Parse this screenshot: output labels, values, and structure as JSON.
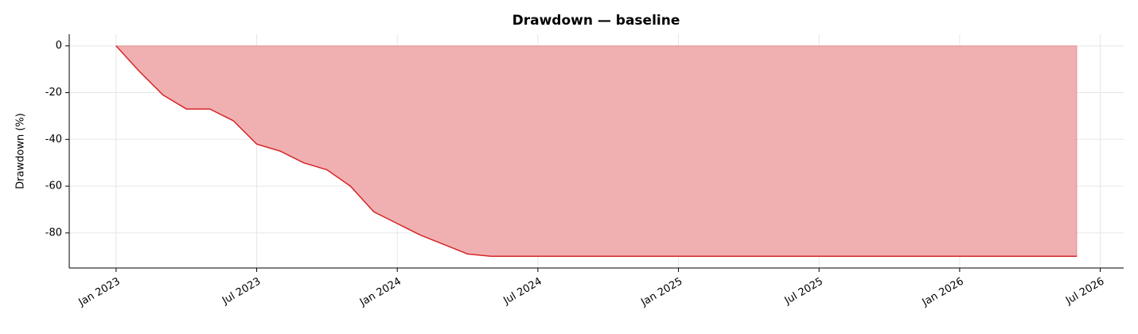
{
  "chart_data": {
    "type": "area",
    "title": "Drawdown — baseline",
    "y_label": "Drawdown (%)",
    "x": [
      "2023-01",
      "2023-02",
      "2023-03",
      "2023-04",
      "2023-05",
      "2023-06",
      "2023-07",
      "2023-08",
      "2023-09",
      "2023-10",
      "2023-11",
      "2023-12",
      "2024-01",
      "2024-02",
      "2024-03",
      "2024-04",
      "2024-05",
      "2024-06",
      "2024-07",
      "2024-08",
      "2024-09",
      "2024-10",
      "2024-11",
      "2024-12",
      "2025-01",
      "2025-02",
      "2025-03",
      "2025-04",
      "2025-05",
      "2025-06",
      "2025-07",
      "2025-08",
      "2025-09",
      "2025-10",
      "2025-11",
      "2025-12",
      "2026-01",
      "2026-02",
      "2026-03",
      "2026-04",
      "2026-05",
      "2026-06"
    ],
    "values": [
      0,
      -11,
      -21,
      -27,
      -27,
      -32,
      -42,
      -45,
      -50,
      -53,
      -60,
      -71,
      -76,
      -81,
      -85,
      -89,
      -90,
      -90,
      -90,
      -90,
      -90,
      -90,
      -90,
      -90,
      -90,
      -90,
      -90,
      -90,
      -90,
      -90,
      -90,
      -90,
      -90,
      -90,
      -90,
      -90,
      -90,
      -90,
      -90,
      -90,
      -90,
      -90
    ],
    "color": "#d62728",
    "fill_color": "#f0b0b2",
    "xlim": [
      "2022-11",
      "2026-08"
    ],
    "xticks": [
      {
        "value": "2023-01",
        "label": "Jan 2023"
      },
      {
        "value": "2023-07",
        "label": "Jul 2023"
      },
      {
        "value": "2024-01",
        "label": "Jan 2024"
      },
      {
        "value": "2024-07",
        "label": "Jul 2024"
      },
      {
        "value": "2025-01",
        "label": "Jan 2025"
      },
      {
        "value": "2025-07",
        "label": "Jul 2025"
      },
      {
        "value": "2026-01",
        "label": "Jan 2026"
      },
      {
        "value": "2026-07",
        "label": "Jul 2026"
      }
    ],
    "ylim": [
      -95,
      5
    ],
    "yticks": [
      -80,
      -60,
      -40,
      -20,
      0
    ],
    "grid": true
  }
}
